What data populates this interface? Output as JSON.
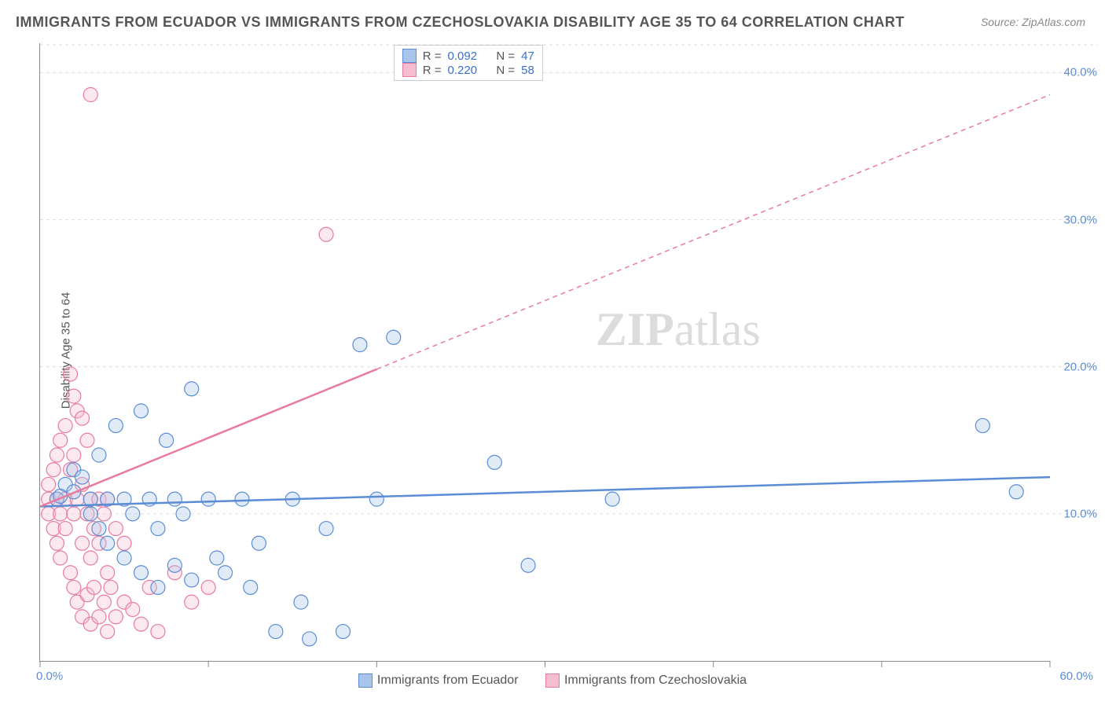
{
  "title": "IMMIGRANTS FROM ECUADOR VS IMMIGRANTS FROM CZECHOSLOVAKIA DISABILITY AGE 35 TO 64 CORRELATION CHART",
  "source_label": "Source: ",
  "source_value": "ZipAtlas.com",
  "ylabel": "Disability Age 35 to 64",
  "watermark_a": "ZIP",
  "watermark_b": "atlas",
  "chart": {
    "type": "scatter",
    "xlim": [
      0,
      60
    ],
    "ylim": [
      0,
      42
    ],
    "x_ticks": [
      0,
      10,
      20,
      30,
      40,
      50,
      60
    ],
    "y_gridlines": [
      10,
      20,
      30,
      40
    ],
    "x_tick_labels": {
      "0": "0.0%",
      "60": "60.0%"
    },
    "y_tick_labels": {
      "10": "10.0%",
      "20": "20.0%",
      "30": "30.0%",
      "40": "40.0%"
    },
    "background_color": "#ffffff",
    "grid_color": "#dddddd",
    "axis_color": "#888888",
    "marker_radius": 9,
    "marker_stroke_width": 1.2,
    "marker_fill_opacity": 0.35,
    "trend_line_width": 2.5,
    "trend_dash": "6,5"
  },
  "series": [
    {
      "id": "ecuador",
      "label": "Immigrants from Ecuador",
      "color_stroke": "#5b8dd6",
      "color_fill": "#a9c5ec",
      "R_label": "R = ",
      "R": "0.092",
      "N_label": "N = ",
      "N": "47",
      "trend": {
        "x1": 0,
        "y1": 10.5,
        "x2": 60,
        "y2": 12.5,
        "solid_until_x": 60
      },
      "points": [
        [
          1,
          11
        ],
        [
          1.5,
          12
        ],
        [
          2,
          11.5
        ],
        [
          2,
          13
        ],
        [
          2.5,
          12.5
        ],
        [
          3,
          11
        ],
        [
          3,
          10
        ],
        [
          3.5,
          9
        ],
        [
          3.5,
          14
        ],
        [
          4,
          11
        ],
        [
          4,
          8
        ],
        [
          4.5,
          16
        ],
        [
          5,
          11
        ],
        [
          5,
          7
        ],
        [
          5.5,
          10
        ],
        [
          6,
          17
        ],
        [
          6,
          6
        ],
        [
          6.5,
          11
        ],
        [
          7,
          9
        ],
        [
          7,
          5
        ],
        [
          7.5,
          15
        ],
        [
          8,
          11
        ],
        [
          8,
          6.5
        ],
        [
          8.5,
          10
        ],
        [
          9,
          18.5
        ],
        [
          9,
          5.5
        ],
        [
          10,
          11
        ],
        [
          10.5,
          7
        ],
        [
          11,
          6
        ],
        [
          12,
          11
        ],
        [
          12.5,
          5
        ],
        [
          13,
          8
        ],
        [
          14,
          2
        ],
        [
          15,
          11
        ],
        [
          15.5,
          4
        ],
        [
          16,
          1.5
        ],
        [
          17,
          9
        ],
        [
          18,
          2
        ],
        [
          19,
          21.5
        ],
        [
          20,
          11
        ],
        [
          21,
          22
        ],
        [
          27,
          13.5
        ],
        [
          29,
          6.5
        ],
        [
          34,
          11
        ],
        [
          56,
          16
        ],
        [
          58,
          11.5
        ],
        [
          1.2,
          11.2
        ]
      ]
    },
    {
      "id": "czechoslovakia",
      "label": "Immigrants from Czechoslovakia",
      "color_stroke": "#e87ba0",
      "color_fill": "#f5bdd0",
      "R_label": "R = ",
      "R": "0.220",
      "N_label": "N = ",
      "N": "58",
      "trend": {
        "x1": 0,
        "y1": 10.5,
        "x2": 60,
        "y2": 38.5,
        "solid_until_x": 20
      },
      "points": [
        [
          0.5,
          10
        ],
        [
          0.5,
          11
        ],
        [
          0.5,
          12
        ],
        [
          0.8,
          9
        ],
        [
          0.8,
          13
        ],
        [
          1,
          8
        ],
        [
          1,
          11
        ],
        [
          1,
          14
        ],
        [
          1.2,
          7
        ],
        [
          1.2,
          10
        ],
        [
          1.2,
          15
        ],
        [
          1.5,
          9
        ],
        [
          1.5,
          11
        ],
        [
          1.5,
          16
        ],
        [
          1.8,
          6
        ],
        [
          1.8,
          13
        ],
        [
          1.8,
          19.5
        ],
        [
          2,
          5
        ],
        [
          2,
          10
        ],
        [
          2,
          14
        ],
        [
          2,
          18
        ],
        [
          2.2,
          4
        ],
        [
          2.2,
          11
        ],
        [
          2.2,
          17
        ],
        [
          2.5,
          3
        ],
        [
          2.5,
          8
        ],
        [
          2.5,
          12
        ],
        [
          2.5,
          16.5
        ],
        [
          2.8,
          4.5
        ],
        [
          2.8,
          10
        ],
        [
          2.8,
          15
        ],
        [
          3,
          2.5
        ],
        [
          3,
          7
        ],
        [
          3,
          11
        ],
        [
          3,
          38.5
        ],
        [
          3.2,
          5
        ],
        [
          3.2,
          9
        ],
        [
          3.5,
          3
        ],
        [
          3.5,
          8
        ],
        [
          3.5,
          11
        ],
        [
          3.8,
          4
        ],
        [
          3.8,
          10
        ],
        [
          4,
          2
        ],
        [
          4,
          6
        ],
        [
          4,
          11
        ],
        [
          4.2,
          5
        ],
        [
          4.5,
          3
        ],
        [
          4.5,
          9
        ],
        [
          5,
          4
        ],
        [
          5,
          8
        ],
        [
          5.5,
          3.5
        ],
        [
          6,
          2.5
        ],
        [
          6.5,
          5
        ],
        [
          7,
          2
        ],
        [
          8,
          6
        ],
        [
          9,
          4
        ],
        [
          10,
          5
        ],
        [
          17,
          29
        ]
      ]
    }
  ]
}
